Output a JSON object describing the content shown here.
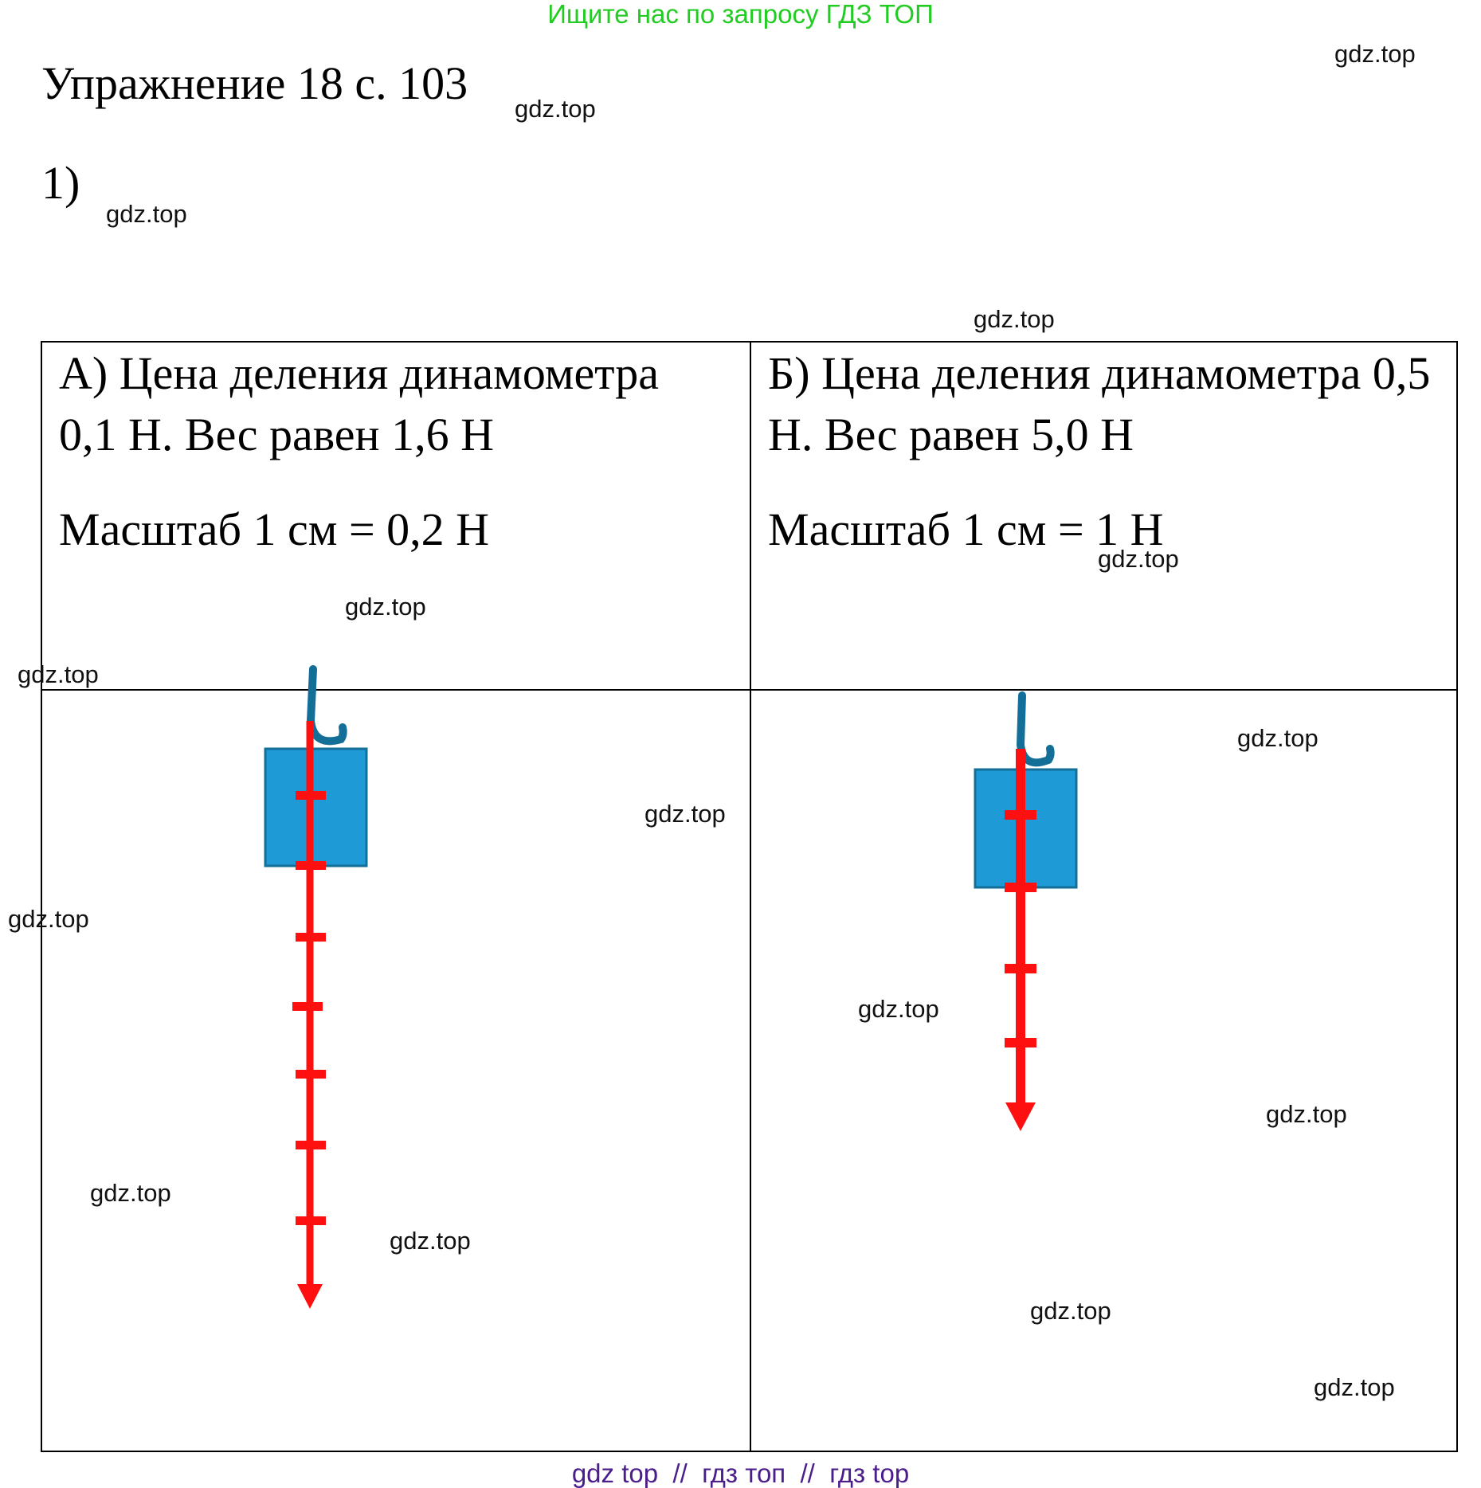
{
  "banner": "Ищите нас по запросу ГДЗ ТОП",
  "title": "Упражнение 18 с. 103",
  "part_label": "1)",
  "cells": {
    "a": {
      "line1": "А) Цена деления динамометра",
      "line2": "0,1 Н. Вес равен 1,6 Н",
      "scale": "Масштаб 1 см = 0,2 Н"
    },
    "b": {
      "line1": "Б) Цена деления динамометра 0,5",
      "line2": "Н. Вес равен 5,0 Н",
      "scale": "Масштаб 1 см = 1 Н"
    }
  },
  "watermark": "gdz.top",
  "footer": {
    "part1": "gdz top",
    "sep1": "  //  ",
    "part2": "гдз топ",
    "sep2": "  //  ",
    "part3": "гдз top"
  },
  "colors": {
    "arrow": "#ff1010",
    "weight": "#1e9ad6",
    "hook": "#136f98",
    "banner": "#22cc22",
    "footer": "#4b1e8c"
  },
  "icons": [
    "weight-block-icon",
    "hook-icon",
    "force-arrow-icon"
  ]
}
